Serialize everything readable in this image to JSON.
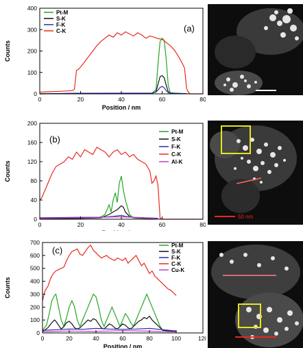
{
  "panels": [
    {
      "id": "a",
      "panel_label": "(a)",
      "scale_bar_label": "",
      "chart_data": {
        "type": "line",
        "xlabel": "Position / nm",
        "ylabel": "Counts",
        "xlim": [
          0,
          80
        ],
        "ylim": [
          0,
          400
        ],
        "xticks": [
          0,
          20,
          40,
          60,
          80
        ],
        "yticks": [
          0,
          100,
          200,
          300,
          400
        ],
        "legend_position": "top-left",
        "series": [
          {
            "name": "Pt-M",
            "color": "#22a622",
            "x": [
              0,
              10,
              17,
              18,
              55,
              57,
              58,
              59,
              60,
              61,
              62,
              63,
              64,
              68,
              72
            ],
            "y": [
              0,
              1,
              2,
              2,
              3,
              20,
              140,
              245,
              260,
              250,
              160,
              40,
              5,
              2,
              1
            ]
          },
          {
            "name": "S-K",
            "color": "#111111",
            "x": [
              0,
              18,
              55,
              57,
              58,
              59,
              60,
              61,
              62,
              63,
              64,
              72
            ],
            "y": [
              0,
              2,
              3,
              10,
              45,
              80,
              85,
              75,
              40,
              10,
              3,
              1
            ]
          },
          {
            "name": "F-K",
            "color": "#2a2aa8",
            "x": [
              0,
              18,
              55,
              57,
              58,
              59,
              60,
              61,
              62,
              63,
              64,
              72
            ],
            "y": [
              0,
              3,
              4,
              8,
              18,
              30,
              35,
              28,
              15,
              6,
              3,
              1
            ]
          },
          {
            "name": "C-K",
            "color": "#e8281e",
            "x": [
              0,
              5,
              10,
              16,
              17,
              18,
              19,
              20,
              22,
              24,
              26,
              28,
              30,
              32,
              34,
              36,
              38,
              40,
              42,
              44,
              46,
              48,
              50,
              52,
              54,
              56,
              58,
              60,
              62,
              64,
              66,
              68,
              70,
              71,
              72,
              73,
              74,
              80
            ],
            "y": [
              8,
              10,
              12,
              15,
              22,
              110,
              115,
              125,
              150,
              175,
              200,
              225,
              245,
              260,
              275,
              265,
              285,
              275,
              290,
              280,
              270,
              285,
              275,
              260,
              270,
              265,
              258,
              255,
              240,
              225,
              205,
              175,
              140,
              120,
              25,
              5,
              0,
              0
            ]
          }
        ]
      },
      "legend_items": [
        {
          "label": "Pt-M",
          "color": "#22a622"
        },
        {
          "label": "S-K",
          "color": "#111111"
        },
        {
          "label": "F-K",
          "color": "#2a2aa8"
        },
        {
          "label": "C-K",
          "color": "#e8281e"
        }
      ]
    },
    {
      "id": "b",
      "panel_label": "(b)",
      "scale_bar_label": "50 nm",
      "chart_data": {
        "type": "line",
        "xlabel": "Position / nm",
        "ylabel": "Counts",
        "xlim": [
          0,
          80
        ],
        "ylim": [
          0,
          200
        ],
        "xticks": [
          0,
          20,
          40,
          60,
          80
        ],
        "yticks": [
          0,
          40,
          80,
          120,
          160,
          200
        ],
        "legend_position": "top-right",
        "series": [
          {
            "name": "Pt-M",
            "color": "#22a622",
            "x": [
              0,
              20,
              28,
              30,
              32,
              34,
              35,
              36,
              37,
              38,
              39,
              40,
              41,
              42,
              43,
              44,
              46,
              50,
              58
            ],
            "y": [
              1,
              2,
              3,
              5,
              10,
              30,
              15,
              40,
              55,
              35,
              75,
              90,
              60,
              40,
              25,
              10,
              3,
              2,
              1
            ]
          },
          {
            "name": "S-K",
            "color": "#111111",
            "x": [
              0,
              20,
              30,
              34,
              36,
              38,
              40,
              41,
              42,
              44,
              46,
              58
            ],
            "y": [
              1,
              2,
              3,
              10,
              15,
              20,
              28,
              25,
              15,
              6,
              3,
              1
            ]
          },
          {
            "name": "F-K",
            "color": "#2a2aa8",
            "x": [
              0,
              20,
              30,
              36,
              40,
              42,
              46,
              58
            ],
            "y": [
              3,
              4,
              4,
              6,
              8,
              6,
              4,
              2
            ]
          },
          {
            "name": "C-K",
            "color": "#e8281e",
            "x": [
              0,
              1,
              2,
              4,
              6,
              8,
              10,
              12,
              14,
              16,
              18,
              20,
              22,
              24,
              26,
              28,
              30,
              32,
              34,
              36,
              38,
              40,
              42,
              44,
              46,
              48,
              50,
              52,
              54,
              55,
              56,
              57,
              58,
              59,
              60,
              80
            ],
            "y": [
              40,
              45,
              55,
              75,
              95,
              110,
              115,
              120,
              130,
              125,
              140,
              130,
              145,
              140,
              135,
              150,
              145,
              140,
              130,
              140,
              145,
              135,
              140,
              130,
              135,
              125,
              120,
              115,
              100,
              75,
              80,
              90,
              70,
              2,
              0,
              0
            ]
          },
          {
            "name": "Al-K",
            "color": "#c040c0",
            "x": [
              0,
              20,
              30,
              40,
              50,
              58
            ],
            "y": [
              2,
              3,
              4,
              5,
              3,
              1
            ]
          }
        ]
      },
      "legend_items": [
        {
          "label": "Pt-M",
          "color": "#22a622"
        },
        {
          "label": "S-K",
          "color": "#111111"
        },
        {
          "label": "F-K",
          "color": "#2a2aa8"
        },
        {
          "label": "C-K",
          "color": "#e8281e"
        },
        {
          "label": "Al-K",
          "color": "#c040c0"
        }
      ]
    },
    {
      "id": "c",
      "panel_label": "(c)",
      "scale_bar_label": "",
      "chart_data": {
        "type": "line",
        "xlabel": "Position / nm",
        "ylabel": "Counts",
        "xlim": [
          0,
          120
        ],
        "ylim": [
          0,
          700
        ],
        "xticks": [
          0,
          20,
          40,
          60,
          80,
          100,
          120
        ],
        "yticks": [
          0,
          100,
          200,
          300,
          400,
          500,
          600,
          700
        ],
        "legend_position": "top-right",
        "series": [
          {
            "name": "Pt-M",
            "color": "#22a622",
            "x": [
              0,
              3,
              5,
              7,
              9,
              10,
              12,
              14,
              16,
              18,
              20,
              22,
              24,
              26,
              28,
              30,
              32,
              34,
              36,
              38,
              40,
              42,
              44,
              46,
              48,
              50,
              52,
              54,
              56,
              58,
              60,
              62,
              64,
              66,
              68,
              70,
              72,
              74,
              76,
              78,
              80,
              82,
              84,
              86,
              88,
              90,
              100
            ],
            "y": [
              20,
              60,
              150,
              250,
              290,
              300,
              200,
              100,
              50,
              120,
              200,
              250,
              200,
              100,
              50,
              100,
              150,
              200,
              250,
              300,
              280,
              200,
              100,
              50,
              100,
              150,
              200,
              150,
              100,
              50,
              100,
              150,
              120,
              80,
              50,
              100,
              150,
              200,
              250,
              300,
              250,
              200,
              150,
              100,
              50,
              20,
              10
            ]
          },
          {
            "name": "S-K",
            "color": "#111111",
            "x": [
              0,
              4,
              7,
              9,
              10,
              12,
              14,
              16,
              18,
              20,
              22,
              24,
              26,
              28,
              30,
              32,
              34,
              36,
              38,
              40,
              42,
              44,
              46,
              48,
              50,
              52,
              54,
              56,
              58,
              60,
              62,
              64,
              66,
              68,
              70,
              72,
              74,
              76,
              78,
              80,
              82,
              84,
              86,
              88,
              90,
              100
            ],
            "y": [
              10,
              40,
              80,
              100,
              90,
              60,
              30,
              50,
              80,
              90,
              70,
              40,
              30,
              40,
              60,
              80,
              100,
              90,
              110,
              100,
              70,
              40,
              30,
              50,
              70,
              60,
              40,
              30,
              50,
              70,
              60,
              40,
              30,
              50,
              70,
              90,
              100,
              120,
              110,
              130,
              100,
              80,
              60,
              40,
              20,
              10
            ]
          },
          {
            "name": "F-K",
            "color": "#2a2aa8",
            "x": [
              0,
              10,
              20,
              30,
              40,
              50,
              60,
              70,
              80,
              90,
              100
            ],
            "y": [
              20,
              25,
              30,
              28,
              35,
              30,
              28,
              30,
              35,
              25,
              15
            ]
          },
          {
            "name": "C-K",
            "color": "#e8281e",
            "x": [
              0,
              2,
              4,
              6,
              8,
              10,
              12,
              14,
              16,
              18,
              20,
              22,
              24,
              26,
              28,
              30,
              32,
              34,
              36,
              38,
              40,
              42,
              44,
              46,
              48,
              50,
              52,
              54,
              56,
              58,
              60,
              62,
              64,
              66,
              68,
              70,
              72,
              74,
              76,
              78,
              80,
              82,
              84,
              86,
              88,
              90,
              92,
              94,
              96,
              98,
              100
            ],
            "y": [
              250,
              330,
              360,
              420,
              460,
              480,
              490,
              500,
              510,
              560,
              600,
              630,
              640,
              650,
              610,
              600,
              630,
              660,
              680,
              640,
              620,
              600,
              580,
              590,
              600,
              580,
              570,
              560,
              580,
              570,
              560,
              580,
              540,
              560,
              580,
              600,
              560,
              520,
              540,
              500,
              460,
              480,
              440,
              420,
              400,
              380,
              360,
              340,
              330,
              310,
              290
            ]
          },
          {
            "name": "Cu-K",
            "color": "#c040c0",
            "x": [
              0,
              20,
              40,
              60,
              80,
              100
            ],
            "y": [
              10,
              15,
              12,
              18,
              14,
              8
            ]
          }
        ]
      },
      "legend_items": [
        {
          "label": "Pt-M",
          "color": "#22a622"
        },
        {
          "label": "S-K",
          "color": "#111111"
        },
        {
          "label": "F-K",
          "color": "#2a2aa8"
        },
        {
          "label": "C-K",
          "color": "#e8281e"
        },
        {
          "label": "Cu-K",
          "color": "#c040c0"
        }
      ]
    }
  ]
}
